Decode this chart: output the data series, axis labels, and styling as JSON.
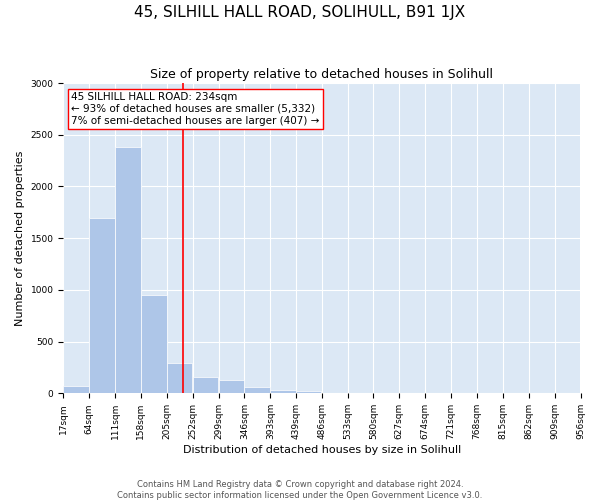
{
  "title": "45, SILHILL HALL ROAD, SOLIHULL, B91 1JX",
  "subtitle": "Size of property relative to detached houses in Solihull",
  "xlabel": "Distribution of detached houses by size in Solihull",
  "ylabel": "Number of detached properties",
  "footnote1": "Contains HM Land Registry data © Crown copyright and database right 2024.",
  "footnote2": "Contains public sector information licensed under the Open Government Licence v3.0.",
  "annotation_line1": "45 SILHILL HALL ROAD: 234sqm",
  "annotation_line2": "← 93% of detached houses are smaller (5,332)",
  "annotation_line3": "7% of semi-detached houses are larger (407) →",
  "bar_color": "#aec6e8",
  "vline_color": "red",
  "vline_x": 234,
  "background_color": "#dce8f5",
  "bin_edges": [
    17,
    64,
    111,
    158,
    205,
    252,
    299,
    346,
    393,
    439,
    486,
    533,
    580,
    627,
    674,
    721,
    768,
    815,
    862,
    909,
    956
  ],
  "bin_counts": [
    75,
    1700,
    2380,
    950,
    290,
    160,
    130,
    60,
    30,
    25,
    0,
    0,
    0,
    0,
    0,
    0,
    0,
    0,
    0,
    0
  ],
  "ylim": [
    0,
    3000
  ],
  "yticks": [
    0,
    500,
    1000,
    1500,
    2000,
    2500,
    3000
  ],
  "title_fontsize": 11,
  "subtitle_fontsize": 9,
  "axis_label_fontsize": 8,
  "tick_fontsize": 6.5,
  "annotation_fontsize": 7.5,
  "footnote_fontsize": 6
}
